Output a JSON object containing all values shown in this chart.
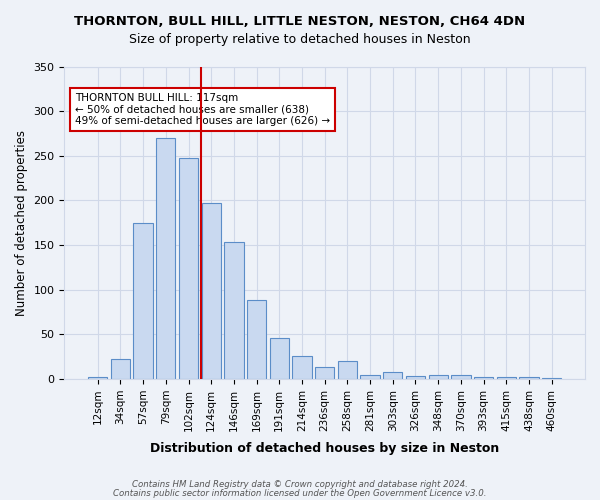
{
  "title": "THORNTON, BULL HILL, LITTLE NESTON, NESTON, CH64 4DN",
  "subtitle": "Size of property relative to detached houses in Neston",
  "xlabel": "Distribution of detached houses by size in Neston",
  "ylabel": "Number of detached properties",
  "categories": [
    "12sqm",
    "34sqm",
    "57sqm",
    "79sqm",
    "102sqm",
    "124sqm",
    "146sqm",
    "169sqm",
    "191sqm",
    "214sqm",
    "236sqm",
    "258sqm",
    "281sqm",
    "303sqm",
    "326sqm",
    "348sqm",
    "370sqm",
    "393sqm",
    "415sqm",
    "438sqm",
    "460sqm"
  ],
  "values": [
    2,
    23,
    175,
    270,
    247,
    197,
    153,
    88,
    46,
    26,
    13,
    20,
    5,
    8,
    3,
    5,
    5,
    2,
    2,
    2,
    1
  ],
  "bar_color": "#c9d9f0",
  "bar_edge_color": "#5b8dc8",
  "vline_color": "#cc0000",
  "annotation_text": "THORNTON BULL HILL: 117sqm\n← 50% of detached houses are smaller (638)\n49% of semi-detached houses are larger (626) →",
  "annotation_box_color": "#ffffff",
  "annotation_box_edge": "#cc0000",
  "grid_color": "#d0d8e8",
  "background_color": "#eef2f8",
  "footnote1": "Contains HM Land Registry data © Crown copyright and database right 2024.",
  "footnote2": "Contains public sector information licensed under the Open Government Licence v3.0.",
  "ylim": [
    0,
    350
  ],
  "yticks": [
    0,
    50,
    100,
    150,
    200,
    250,
    300,
    350
  ]
}
